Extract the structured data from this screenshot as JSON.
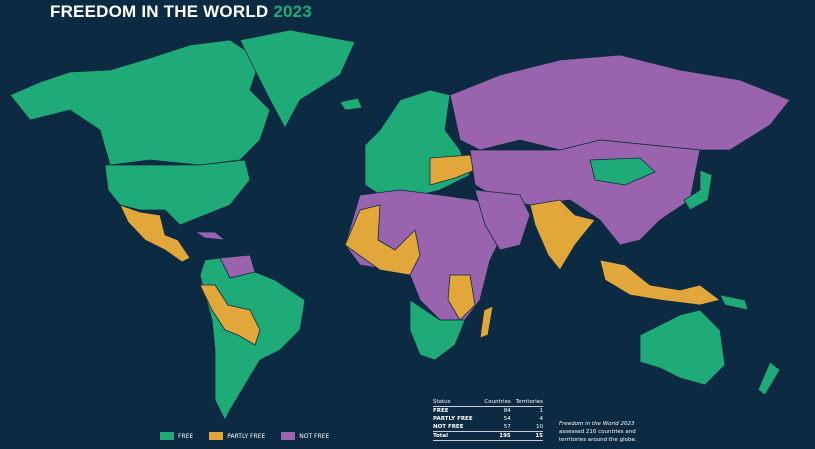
{
  "title": {
    "main": "FREEDOM IN THE WORLD",
    "year": "2023"
  },
  "colors": {
    "background": "#0c2a41",
    "free": "#1fab78",
    "partly_free": "#e2a73a",
    "not_free": "#9a63ad",
    "borders": "#0c2a41"
  },
  "legend": [
    {
      "label": "FREE",
      "color": "#1fab78"
    },
    {
      "label": "PARTLY FREE",
      "color": "#e2a73a"
    },
    {
      "label": "NOT FREE",
      "color": "#9a63ad"
    }
  ],
  "table": {
    "headers": [
      "Status",
      "Countries",
      "Territories"
    ],
    "rows": [
      {
        "status": "FREE",
        "countries": "84",
        "territories": "1"
      },
      {
        "status": "PARTLY FREE",
        "countries": "54",
        "territories": "4"
      },
      {
        "status": "NOT FREE",
        "countries": "57",
        "territories": "10"
      }
    ],
    "total": {
      "status": "Total",
      "countries": "195",
      "territories": "15"
    }
  },
  "note": {
    "italic": "Freedom in the World 2023",
    "text": "assessed 210 countries and territories around the globe."
  }
}
